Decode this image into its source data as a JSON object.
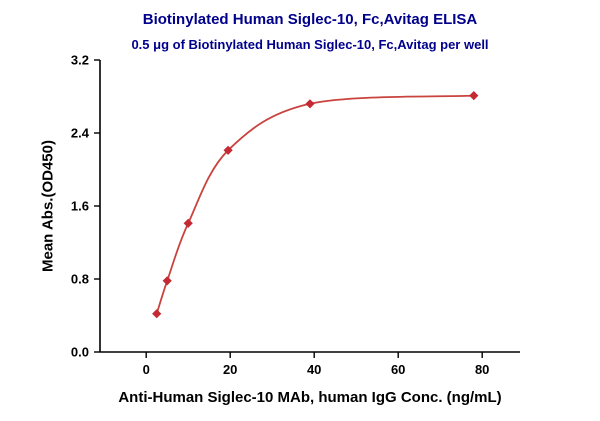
{
  "page": {
    "background": "#ffffff"
  },
  "chart_data": {
    "type": "scatter",
    "title": "Biotinylated Human Siglec-10, Fc,Avitag ELISA",
    "subtitle": "0.5 μg of Biotinylated Human Siglec-10, Fc,Avitag per well",
    "xlabel": "Anti-Human Siglec-10 MAb, human IgG Conc. (ng/mL)",
    "ylabel": "Mean Abs.(OD450)",
    "x": [
      2.5,
      5,
      10,
      19.5,
      39,
      78
    ],
    "y": [
      0.42,
      0.78,
      1.41,
      2.21,
      2.72,
      2.81
    ],
    "curve": "smooth sigmoid fit through data points",
    "xticks": [
      0,
      20,
      40,
      60,
      80
    ],
    "yticks": [
      0.0,
      0.8,
      1.6,
      2.4,
      3.2
    ],
    "xlim": [
      -11,
      89
    ],
    "ylim": [
      0,
      3.2
    ],
    "grid": false,
    "legend": null,
    "marker": "diamond",
    "marker_color": "#c42a33",
    "line_color": "#c9433f",
    "axis_color": "#000000",
    "tick_label_color": "#000000",
    "title_color": "#00008b"
  }
}
